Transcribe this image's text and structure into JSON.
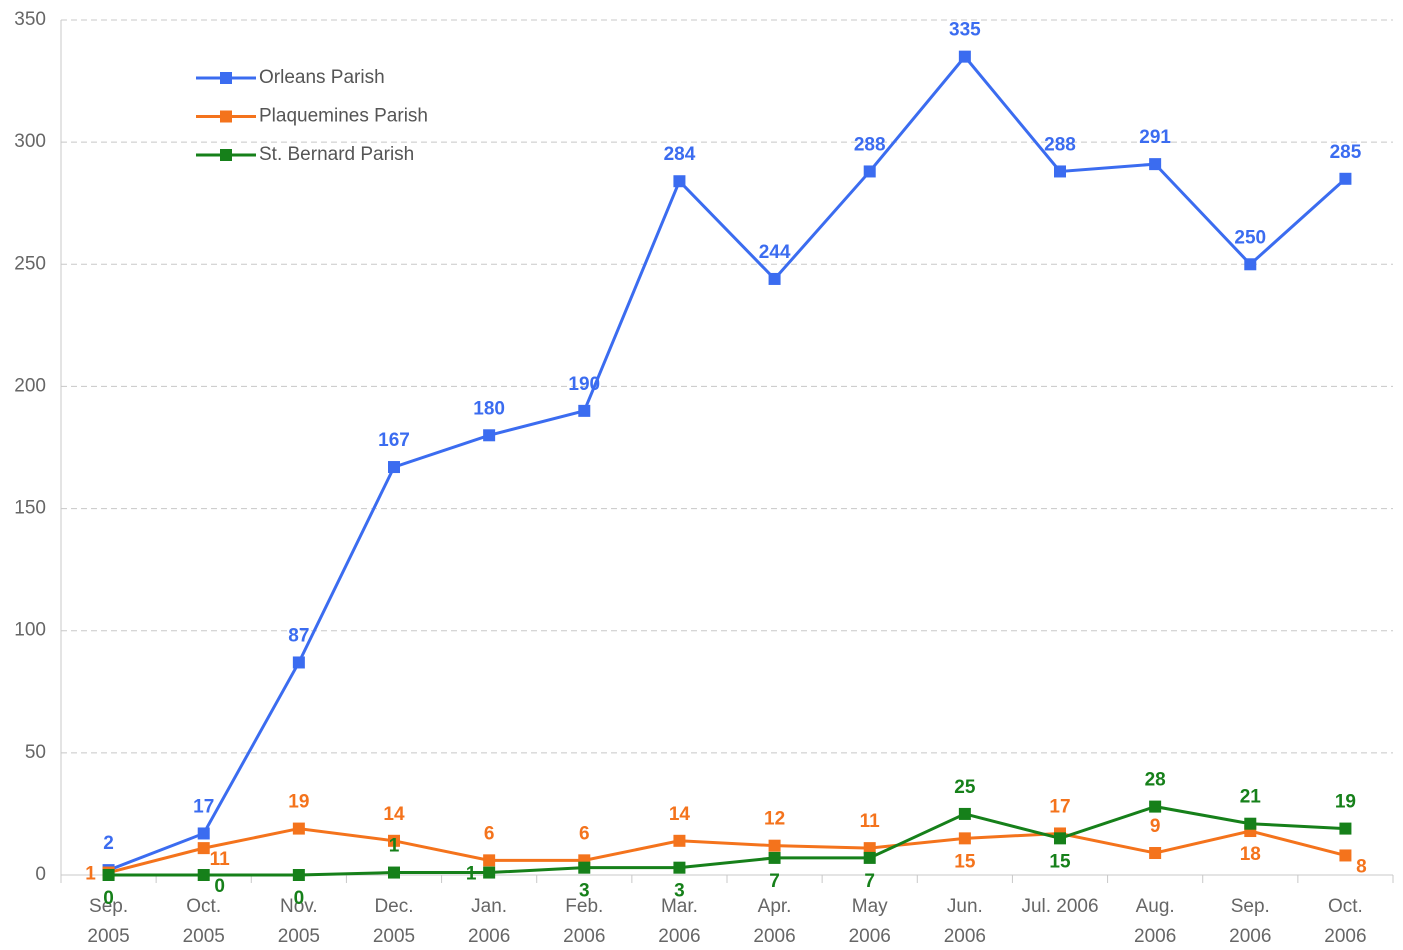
{
  "chart_data": {
    "type": "line",
    "categories": [
      [
        "Sep.",
        "2005"
      ],
      [
        "Oct.",
        "2005"
      ],
      [
        "Nov.",
        "2005"
      ],
      [
        "Dec.",
        "2005"
      ],
      [
        "Jan.",
        "2006"
      ],
      [
        "Feb.",
        "2006"
      ],
      [
        "Mar.",
        "2006"
      ],
      [
        "Apr.",
        "2006"
      ],
      [
        "May",
        "2006"
      ],
      [
        "Jun.",
        "2006"
      ],
      [
        "Jul. 2006"
      ],
      [
        "Aug.",
        "2006"
      ],
      [
        "Sep.",
        "2006"
      ],
      [
        "Oct.",
        "2006"
      ]
    ],
    "series": [
      {
        "name": "Orleans Parish",
        "color": "#3b6cf0",
        "values": [
          2,
          17,
          87,
          167,
          180,
          190,
          284,
          244,
          288,
          335,
          288,
          291,
          250,
          285
        ]
      },
      {
        "name": "Plaquemines Parish",
        "color": "#f4731c",
        "values": [
          1,
          11,
          19,
          14,
          6,
          6,
          14,
          12,
          11,
          15,
          17,
          9,
          18,
          8
        ]
      },
      {
        "name": "St. Bernard Parish",
        "color": "#16801a",
        "values": [
          0,
          0,
          0,
          1,
          1,
          3,
          3,
          7,
          7,
          25,
          15,
          28,
          21,
          19
        ]
      }
    ],
    "ylim": [
      0,
      350
    ],
    "yticks": [
      0,
      50,
      100,
      150,
      200,
      250,
      300,
      350
    ],
    "grid": true,
    "legend": "upper left"
  }
}
